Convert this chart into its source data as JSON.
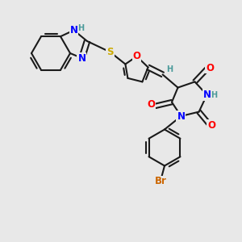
{
  "bg_color": "#e8e8e8",
  "bond_color": "#1a1a1a",
  "bond_width": 1.5,
  "atom_colors": {
    "N": "#0000ff",
    "O": "#ff0000",
    "S": "#ccaa00",
    "Br": "#cc6600",
    "H_label": "#4a9a9a",
    "C": "#1a1a1a"
  },
  "font_size_atom": 8.5,
  "font_size_small": 7.0,
  "figsize": [
    3.0,
    3.0
  ],
  "dpi": 100,
  "xlim": [
    0,
    10
  ],
  "ylim": [
    0,
    10
  ]
}
